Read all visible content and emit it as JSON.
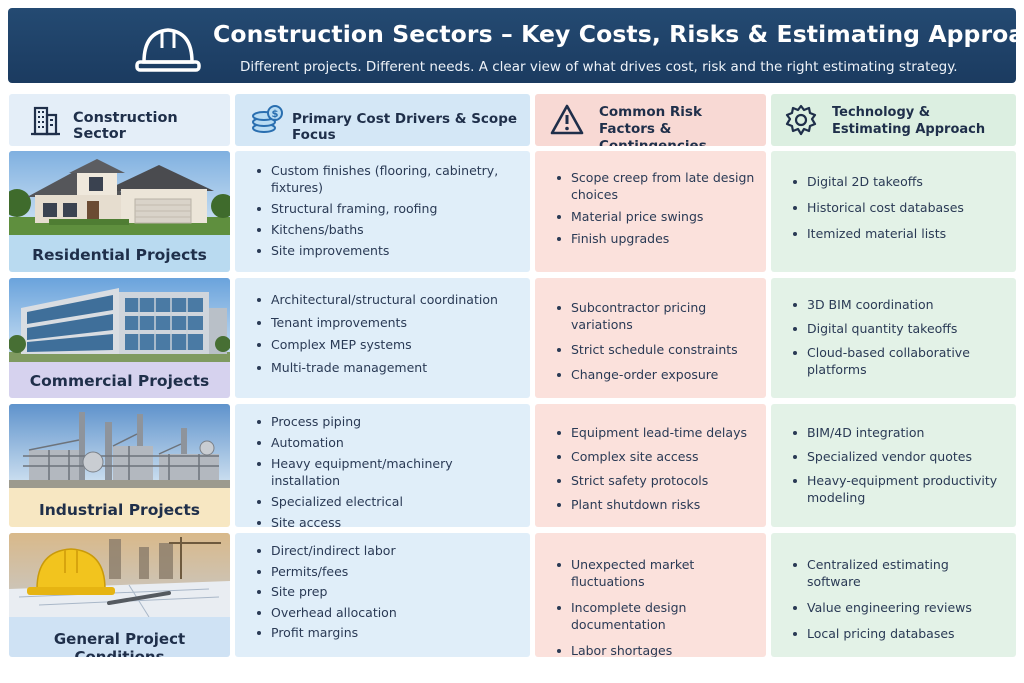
{
  "header": {
    "title": "Construction Sectors – Key Costs, Risks & Estimating Approach",
    "subtitle": "Different projects. Different needs. A clear view of what drives cost, risk and the right estimating strategy.",
    "icon": "hard-hat-icon"
  },
  "columns": [
    {
      "label": "Construction Sector",
      "icon": "building-icon"
    },
    {
      "label": "Primary Cost Drivers & Scope Focus",
      "icon": "coins-icon"
    },
    {
      "label": "Common Risk Factors & Contingencies",
      "icon": "warning-icon"
    },
    {
      "label": "Technology & Estimating Approach",
      "icon": "gear-icon"
    }
  ],
  "colors": {
    "banner": "#1f4268",
    "sector_residential": "#b9daf0",
    "sector_commercial": "#d6d2ee",
    "sector_industrial": "#f7e7c2",
    "sector_general": "#cfe2f4",
    "cost_column": "#e0eef9",
    "risk_column": "#fbe1dc",
    "tech_column": "#e3f2e7"
  },
  "rows": [
    {
      "sector": "Residential Projects",
      "image": "suburban-house-photo",
      "cost_drivers": [
        "Custom finishes (flooring, cabinetry, fixtures)",
        "Structural framing, roofing",
        "Kitchens/baths",
        "Site improvements"
      ],
      "risks": [
        "Scope creep from late design choices",
        "Material price swings",
        "Finish upgrades"
      ],
      "technology": [
        "Digital 2D takeoffs",
        "Historical cost databases",
        "Itemized material lists"
      ]
    },
    {
      "sector": "Commercial Projects",
      "image": "office-building-photo",
      "cost_drivers": [
        "Architectural/structural coordination",
        "Tenant improvements",
        "Complex MEP systems",
        "Multi-trade management"
      ],
      "risks": [
        "Subcontractor pricing variations",
        "Strict schedule constraints",
        "Change-order exposure"
      ],
      "technology": [
        "3D BIM coordination",
        "Digital quantity takeoffs",
        "Cloud-based collaborative platforms"
      ]
    },
    {
      "sector": "Industrial Projects",
      "image": "industrial-plant-photo",
      "cost_drivers": [
        "Process piping",
        "Automation",
        "Heavy equipment/machinery installation",
        "Specialized electrical",
        "Site access"
      ],
      "risks": [
        "Equipment lead-time delays",
        "Complex site access",
        "Strict safety protocols",
        "Plant shutdown risks"
      ],
      "technology": [
        "BIM/4D integration",
        "Specialized vendor quotes",
        "Heavy-equipment productivity modeling"
      ]
    },
    {
      "sector": "General Project Conditions",
      "image": "hard-hat-blueprints-photo",
      "cost_drivers": [
        "Direct/indirect labor",
        "Permits/fees",
        "Site prep",
        "Overhead allocation",
        "Profit margins"
      ],
      "risks": [
        "Unexpected market fluctuations",
        "Incomplete design documentation",
        "Labor shortages"
      ],
      "technology": [
        "Centralized estimating software",
        "Value engineering reviews",
        "Local pricing databases"
      ]
    }
  ]
}
